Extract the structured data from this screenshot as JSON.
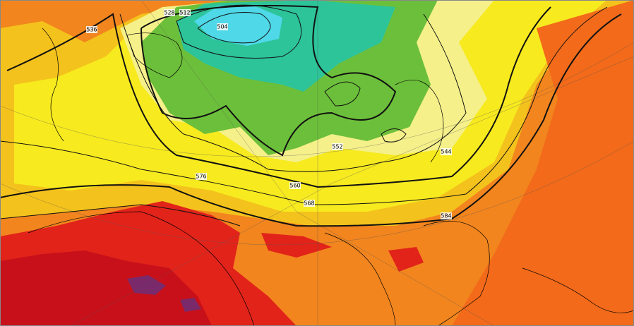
{
  "map": {
    "contour_labels": [
      "504",
      "512",
      "528",
      "536",
      "544",
      "552",
      "560",
      "568",
      "576",
      "584"
    ]
  }
}
